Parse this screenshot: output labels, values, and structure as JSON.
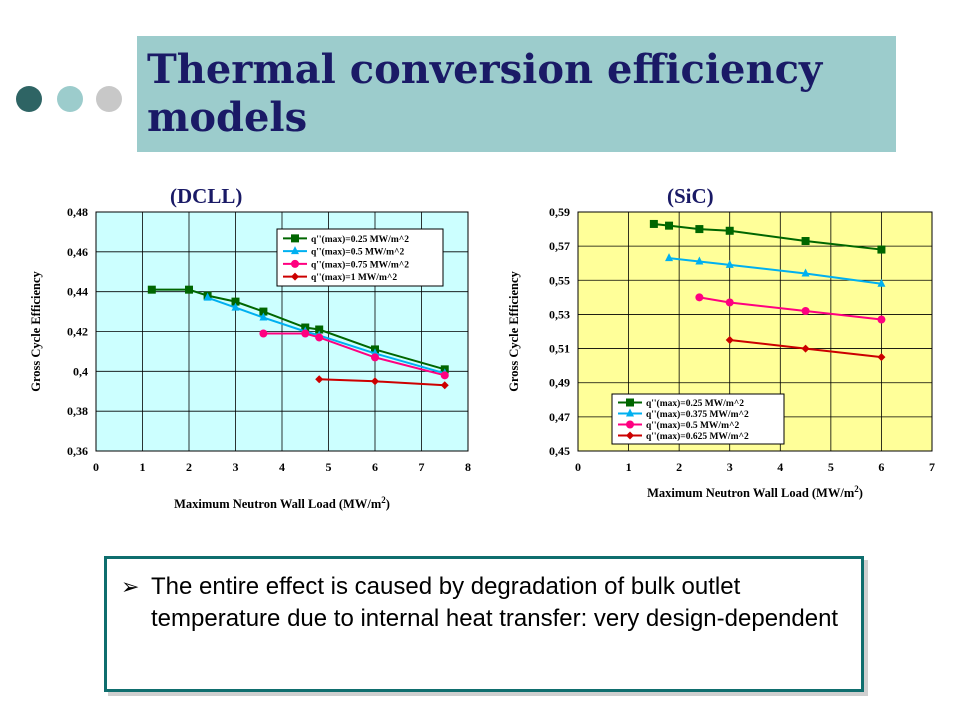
{
  "slide": {
    "title": "Thermal conversion efficiency models",
    "dot_colors": [
      "#2e6464",
      "#9ccccc",
      "#c8c8c8"
    ],
    "title_band_color": "#9ccccc",
    "title_color": "#1a1a66"
  },
  "note": {
    "bullet": "➢",
    "text": "The entire effect is caused by degradation of bulk outlet temperature due to internal heat transfer: very design-dependent"
  },
  "chart_data": [
    {
      "type": "line",
      "heading": "(DCLL)",
      "xlabel": "Maximum Neutron Wall Load (MW/m",
      "xlabel_sup": "2",
      "xlabel_tail": ")",
      "ylabel": "Gross Cycle Efficiency",
      "xlim": [
        0,
        8
      ],
      "ylim": [
        0.36,
        0.48
      ],
      "xticks": [
        "0",
        "1",
        "2",
        "3",
        "4",
        "5",
        "6",
        "7",
        "8"
      ],
      "yticks": [
        "0,36",
        "0,38",
        "0,4",
        "0,42",
        "0,44",
        "0,46",
        "0,48"
      ],
      "grid": true,
      "plot_bg": "#ccffff",
      "legend_position": "top-right",
      "series": [
        {
          "name": "q''(max)=0.25 MW/m^2",
          "color": "#006600",
          "marker": "square",
          "x": [
            1.2,
            2.0,
            2.4,
            3.0,
            3.6,
            4.5,
            4.8,
            6.0,
            7.5
          ],
          "y": [
            0.441,
            0.441,
            0.438,
            0.435,
            0.43,
            0.422,
            0.421,
            0.411,
            0.401
          ]
        },
        {
          "name": "q''(max)=0.5 MW/m^2",
          "color": "#00b0f0",
          "marker": "triangle",
          "x": [
            2.4,
            3.0,
            3.6,
            4.5,
            4.8,
            6.0,
            7.5
          ],
          "y": [
            0.437,
            0.432,
            0.427,
            0.42,
            0.418,
            0.409,
            0.399
          ]
        },
        {
          "name": "q''(max)=0.75 MW/m^2",
          "color": "#ff0080",
          "marker": "circle",
          "x": [
            3.6,
            4.5,
            4.8,
            6.0,
            7.5
          ],
          "y": [
            0.419,
            0.419,
            0.417,
            0.407,
            0.398
          ]
        },
        {
          "name": "q''(max)=1 MW/m^2",
          "color": "#cc0000",
          "marker": "diamond",
          "x": [
            4.8,
            6.0,
            7.5
          ],
          "y": [
            0.396,
            0.395,
            0.393
          ]
        }
      ]
    },
    {
      "type": "line",
      "heading": "(SiC)",
      "xlabel": "Maximum Neutron Wall Load (MW/m",
      "xlabel_sup": "2",
      "xlabel_tail": ")",
      "ylabel": "Gross Cycle Efficiency",
      "xlim": [
        0,
        7
      ],
      "ylim": [
        0.45,
        0.59
      ],
      "xticks": [
        "0",
        "1",
        "2",
        "3",
        "4",
        "5",
        "6",
        "7"
      ],
      "yticks": [
        "0,45",
        "0,47",
        "0,49",
        "0,51",
        "0,53",
        "0,55",
        "0,57",
        "0,59"
      ],
      "grid": true,
      "plot_bg": "#ffff99",
      "legend_position": "bottom-left",
      "series": [
        {
          "name": "q''(max)=0.25 MW/m^2",
          "color": "#006600",
          "marker": "square",
          "x": [
            1.5,
            1.8,
            2.4,
            3.0,
            4.5,
            6.0
          ],
          "y": [
            0.583,
            0.582,
            0.58,
            0.579,
            0.573,
            0.568
          ]
        },
        {
          "name": "q''(max)=0.375 MW/m^2",
          "color": "#00b0f0",
          "marker": "triangle",
          "x": [
            1.8,
            2.4,
            3.0,
            4.5,
            6.0
          ],
          "y": [
            0.563,
            0.561,
            0.559,
            0.554,
            0.548
          ]
        },
        {
          "name": "q''(max)=0.5 MW/m^2",
          "color": "#ff0080",
          "marker": "circle",
          "x": [
            2.4,
            3.0,
            4.5,
            6.0
          ],
          "y": [
            0.54,
            0.537,
            0.532,
            0.527
          ]
        },
        {
          "name": "q''(max)=0.625 MW/m^2",
          "color": "#cc0000",
          "marker": "diamond",
          "x": [
            3.0,
            4.5,
            6.0
          ],
          "y": [
            0.515,
            0.51,
            0.505
          ]
        }
      ]
    }
  ]
}
